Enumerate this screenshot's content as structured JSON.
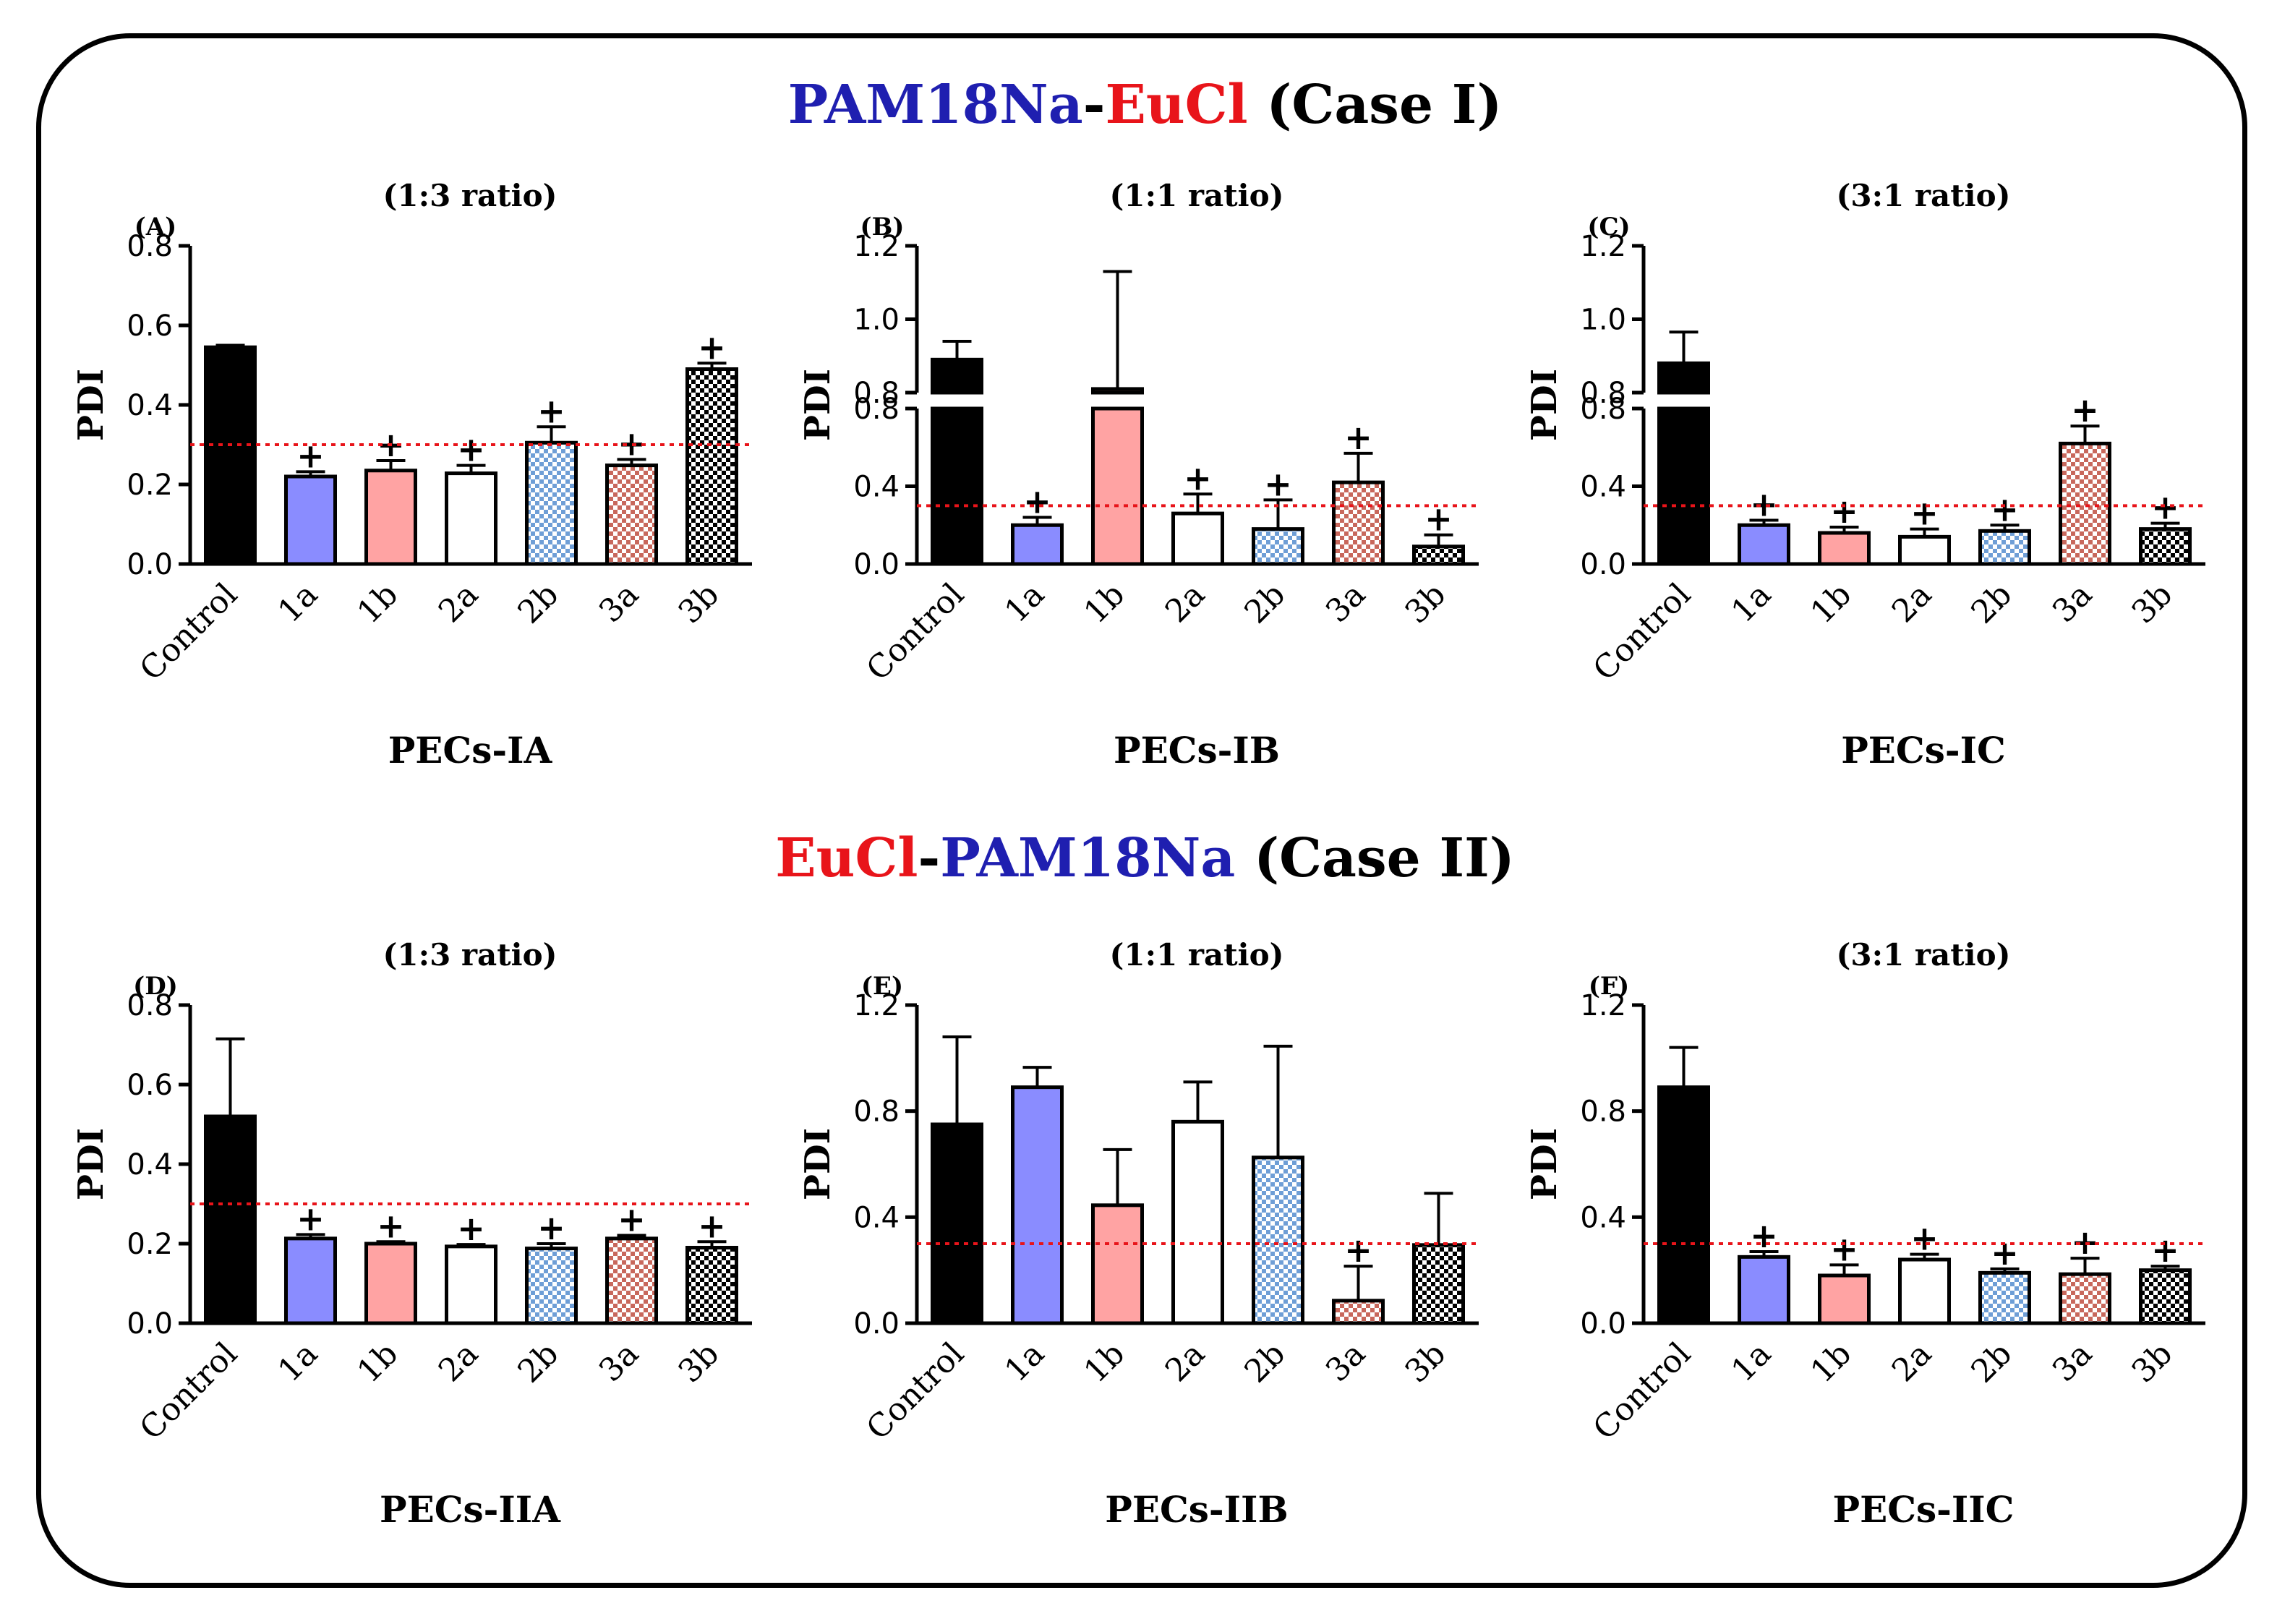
{
  "cases": [
    {
      "parts": [
        {
          "text": "PAM18Na",
          "color": "#1f1fb0"
        },
        {
          "text": "-",
          "color": "#000000"
        },
        {
          "text": "EuCl",
          "color": "#e8141a"
        },
        {
          "text": " (Case I)",
          "color": "#000000"
        }
      ]
    },
    {
      "parts": [
        {
          "text": "EuCl",
          "color": "#e8141a"
        },
        {
          "text": "-",
          "color": "#000000"
        },
        {
          "text": "PAM18Na",
          "color": "#1f1fb0"
        },
        {
          "text": " (Case II)",
          "color": "#000000"
        }
      ]
    }
  ],
  "series_styles": [
    {
      "name": "Control",
      "fill": "#000000",
      "pattern": "solid"
    },
    {
      "name": "1a",
      "fill": "#8a8cff",
      "pattern": "solid"
    },
    {
      "name": "1b",
      "fill": "#ffa3a3",
      "pattern": "solid"
    },
    {
      "name": "2a",
      "fill": "#ffffff",
      "pattern": "solid"
    },
    {
      "name": "2b",
      "fill": "#6e9ed6",
      "pattern": "check"
    },
    {
      "name": "3a",
      "fill": "#c8685c",
      "pattern": "check"
    },
    {
      "name": "3b",
      "fill": "#000000",
      "pattern": "check"
    }
  ],
  "chart_data": [
    {
      "type": "bar",
      "letter": "(A)",
      "title": "(1:3 ratio)",
      "xlabel": "PECs-IA",
      "ylabel": "PDI",
      "categories": [
        "Control",
        "1a",
        "1b",
        "2a",
        "2b",
        "3a",
        "3b"
      ],
      "values": [
        0.545,
        0.22,
        0.235,
        0.228,
        0.305,
        0.248,
        0.49
      ],
      "errors": [
        0.005,
        0.012,
        0.025,
        0.02,
        0.04,
        0.015,
        0.015
      ],
      "marks": [
        "",
        "+",
        "+",
        "+",
        "+",
        "+",
        "+"
      ],
      "ylim": [
        0,
        0.8
      ],
      "yticks": [
        "0.0",
        "0.2",
        "0.4",
        "0.6",
        "0.8"
      ],
      "threshold": 0.3,
      "break": null
    },
    {
      "type": "bar",
      "letter": "(B)",
      "title": "(1:1 ratio)",
      "xlabel": "PECs-IB",
      "ylabel": "PDI",
      "categories": [
        "Control",
        "1a",
        "1b",
        "2a",
        "2b",
        "3a",
        "3b"
      ],
      "values": [
        0.89,
        0.2,
        0.81,
        0.26,
        0.18,
        0.42,
        0.09
      ],
      "errors": [
        0.05,
        0.04,
        0.32,
        0.1,
        0.15,
        0.15,
        0.06
      ],
      "marks": [
        "",
        "+",
        "",
        "+",
        "+",
        "+",
        "+"
      ],
      "ylim": [
        0,
        1.2
      ],
      "yticks": [
        "0.0",
        "0.4",
        "0.8",
        "0.8",
        "1.0",
        "1.2"
      ],
      "threshold": 0.3,
      "break": {
        "low": [
          0,
          0.8
        ],
        "high": [
          0.8,
          1.2
        ]
      }
    },
    {
      "type": "bar",
      "letter": "(C)",
      "title": "(3:1 ratio)",
      "xlabel": "PECs-IC",
      "ylabel": "PDI",
      "categories": [
        "Control",
        "1a",
        "1b",
        "2a",
        "2b",
        "3a",
        "3b"
      ],
      "values": [
        0.88,
        0.2,
        0.16,
        0.14,
        0.17,
        0.62,
        0.18
      ],
      "errors": [
        0.085,
        0.025,
        0.03,
        0.04,
        0.03,
        0.09,
        0.03
      ],
      "marks": [
        "",
        "+",
        "+",
        "+",
        "+",
        "+",
        "+"
      ],
      "ylim": [
        0,
        1.2
      ],
      "yticks": [
        "0.0",
        "0.4",
        "0.8",
        "0.8",
        "1.0",
        "1.2"
      ],
      "threshold": 0.3,
      "break": {
        "low": [
          0,
          0.8
        ],
        "high": [
          0.8,
          1.2
        ]
      }
    },
    {
      "type": "bar",
      "letter": "(D)",
      "title": "(1:3 ratio)",
      "xlabel": "PECs-IIA",
      "ylabel": "PDI",
      "categories": [
        "Control",
        "1a",
        "1b",
        "2a",
        "2b",
        "3a",
        "3b"
      ],
      "values": [
        0.52,
        0.213,
        0.2,
        0.193,
        0.188,
        0.213,
        0.19
      ],
      "errors": [
        0.195,
        0.01,
        0.005,
        0.005,
        0.012,
        0.008,
        0.015
      ],
      "marks": [
        "",
        "+",
        "+",
        "+",
        "+",
        "+",
        "+"
      ],
      "ylim": [
        0,
        0.8
      ],
      "yticks": [
        "0.0",
        "0.2",
        "0.4",
        "0.6",
        "0.8"
      ],
      "threshold": 0.3,
      "break": null
    },
    {
      "type": "bar",
      "letter": "(E)",
      "title": "(1:1 ratio)",
      "xlabel": "PECs-IIB",
      "ylabel": "PDI",
      "categories": [
        "Control",
        "1a",
        "1b",
        "2a",
        "2b",
        "3a",
        "3b"
      ],
      "values": [
        0.75,
        0.89,
        0.445,
        0.76,
        0.625,
        0.085,
        0.295
      ],
      "errors": [
        0.33,
        0.075,
        0.21,
        0.15,
        0.42,
        0.13,
        0.195
      ],
      "marks": [
        "",
        "",
        "",
        "",
        "",
        "+",
        ""
      ],
      "ylim": [
        0,
        1.2
      ],
      "yticks": [
        "0.0",
        "0.4",
        "0.8",
        "1.2"
      ],
      "threshold": 0.3,
      "break": null
    },
    {
      "type": "bar",
      "letter": "(F)",
      "title": "(3:1 ratio)",
      "xlabel": "PECs-IIC",
      "ylabel": "PDI",
      "categories": [
        "Control",
        "1a",
        "1b",
        "2a",
        "2b",
        "3a",
        "3b"
      ],
      "values": [
        0.89,
        0.25,
        0.18,
        0.24,
        0.19,
        0.185,
        0.2
      ],
      "errors": [
        0.15,
        0.02,
        0.04,
        0.02,
        0.015,
        0.06,
        0.015
      ],
      "marks": [
        "",
        "+",
        "+",
        "+",
        "+",
        "+",
        "+"
      ],
      "ylim": [
        0,
        1.2
      ],
      "yticks": [
        "0.0",
        "0.4",
        "0.8",
        "1.2"
      ],
      "threshold": 0.3,
      "break": null
    }
  ]
}
